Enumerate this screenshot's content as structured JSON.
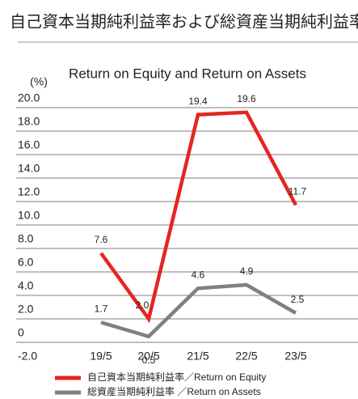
{
  "chart_data": {
    "type": "line",
    "title": "自己資本当期純利益率および総資産当期純利益率",
    "subtitle": "Return on Equity and Return on Assets",
    "y_unit": "(%)",
    "categories": [
      "19/5",
      "20/5",
      "21/5",
      "22/5",
      "23/5"
    ],
    "series": [
      {
        "name": "自己資本当期純利益率／Return on Equity",
        "color": "#e52521",
        "values": [
          7.6,
          2.0,
          19.4,
          19.6,
          11.7
        ],
        "value_labels": [
          "7.6",
          "2.0",
          "19.4",
          "19.6",
          "11.7"
        ]
      },
      {
        "name": "総資産当期純利益率 ／Return on Assets",
        "color": "#808080",
        "values": [
          1.7,
          0.5,
          4.6,
          4.9,
          2.5
        ],
        "value_labels": [
          "1.7",
          "0.5",
          "4.6",
          "4.9",
          "2.5"
        ]
      }
    ],
    "ylim": [
      -2,
      20
    ],
    "yticks": [
      {
        "value": -2,
        "label": "-2.0"
      },
      0,
      {
        "value": 2,
        "label": "2.0"
      },
      {
        "value": 4,
        "label": "4.0"
      },
      {
        "value": 6,
        "label": "6.0"
      },
      {
        "value": 8,
        "label": "8.0"
      },
      {
        "value": 10,
        "label": "10.0"
      },
      {
        "value": 12,
        "label": "12.0"
      },
      {
        "value": 14,
        "label": "14.0"
      },
      {
        "value": 16,
        "label": "16.0"
      },
      {
        "value": 18,
        "label": "18.0"
      },
      {
        "value": 20,
        "label": "20.0"
      }
    ],
    "grid": true
  }
}
